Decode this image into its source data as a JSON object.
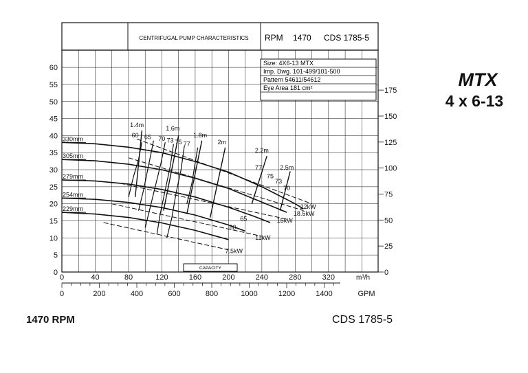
{
  "header": {
    "title": "CENTRIFUGAL PUMP CHARACTERISTICS",
    "rpm_label": "RPM",
    "rpm_value": "1470",
    "cds": "CDS 1785-5"
  },
  "info_box": [
    "Size: 4X6-13 MTX",
    "Imp. Dwg. 101-499/101-500",
    "Pattern 54611/54612",
    "Eye Area   181  cm²"
  ],
  "side_label": {
    "model": "MTX",
    "size": "4 x 6-13"
  },
  "footer": {
    "rpm": "1470 RPM",
    "cds": "CDS 1785-5"
  },
  "capacity_label": "CAPACITY",
  "colors": {
    "line": "#111111",
    "background": "#ffffff"
  },
  "chart_data": {
    "type": "line",
    "title": "CENTRIFUGAL PUMP CHARACTERISTICS",
    "x_unit_primary": "m³/h",
    "x_unit_secondary": "GPM",
    "y_left_unit": "m",
    "y_right_unit": "ft",
    "xlim": [
      0,
      360
    ],
    "ylim": [
      0,
      65
    ],
    "grid": true,
    "x_ticks_m3h": [
      "0",
      "40",
      "80",
      "120",
      "160",
      "200",
      "240",
      "280",
      "320"
    ],
    "x_ticks_m3h_values": [
      0,
      40,
      80,
      120,
      160,
      200,
      240,
      280,
      320
    ],
    "x_ticks_gpm": [
      "0",
      "200",
      "400",
      "600",
      "800",
      "1000",
      "1200",
      "1400"
    ],
    "x_ticks_gpm_values": [
      0,
      200,
      400,
      600,
      800,
      1000,
      1200,
      1400
    ],
    "y_ticks_left": [
      "0",
      "5",
      "10",
      "15",
      "20",
      "25",
      "30",
      "35",
      "40",
      "45",
      "50",
      "55",
      "60"
    ],
    "y_ticks_left_values": [
      0,
      5,
      10,
      15,
      20,
      25,
      30,
      35,
      40,
      45,
      50,
      55,
      60
    ],
    "y_ticks_right": [
      "0",
      "25",
      "50",
      "75",
      "100",
      "125",
      "150",
      "175"
    ],
    "y_ticks_right_values": [
      0,
      25,
      50,
      75,
      100,
      125,
      150,
      175
    ],
    "impeller_curves": [
      {
        "name": "330mm",
        "points": [
          [
            0,
            38
          ],
          [
            40,
            37.6
          ],
          [
            80,
            36.6
          ],
          [
            120,
            35
          ],
          [
            160,
            32.4
          ],
          [
            200,
            29.3
          ],
          [
            240,
            25
          ],
          [
            280,
            20
          ],
          [
            290,
            18.5
          ]
        ]
      },
      {
        "name": "305mm",
        "points": [
          [
            0,
            33
          ],
          [
            40,
            32.6
          ],
          [
            80,
            31.6
          ],
          [
            120,
            30
          ],
          [
            160,
            27.5
          ],
          [
            200,
            24.5
          ],
          [
            240,
            20.5
          ],
          [
            270,
            17.5
          ]
        ]
      },
      {
        "name": "279mm",
        "points": [
          [
            0,
            27
          ],
          [
            40,
            26.7
          ],
          [
            80,
            25.8
          ],
          [
            120,
            24.2
          ],
          [
            160,
            22
          ],
          [
            200,
            19
          ],
          [
            230,
            16.4
          ],
          [
            250,
            14.5
          ]
        ]
      },
      {
        "name": "254mm",
        "points": [
          [
            0,
            21.7
          ],
          [
            40,
            21.3
          ],
          [
            80,
            20.4
          ],
          [
            120,
            18.9
          ],
          [
            160,
            16.7
          ],
          [
            200,
            13.8
          ],
          [
            220,
            12
          ]
        ]
      },
      {
        "name": "229mm",
        "points": [
          [
            0,
            17.5
          ],
          [
            40,
            17
          ],
          [
            80,
            16
          ],
          [
            120,
            14.4
          ],
          [
            160,
            12.2
          ],
          [
            200,
            9.5
          ]
        ]
      }
    ],
    "efficiency_labels": [
      {
        "text": "60",
        "x": 88,
        "y": 39.5
      },
      {
        "text": "65",
        "x": 103,
        "y": 39
      },
      {
        "text": "70",
        "x": 120,
        "y": 38.5
      },
      {
        "text": "73",
        "x": 130,
        "y": 38
      },
      {
        "text": "75",
        "x": 140,
        "y": 37.5
      },
      {
        "text": "77",
        "x": 150,
        "y": 37
      },
      {
        "text": "77",
        "x": 236,
        "y": 30
      },
      {
        "text": "75",
        "x": 250,
        "y": 27.5
      },
      {
        "text": "73",
        "x": 260,
        "y": 26
      },
      {
        "text": "70",
        "x": 270,
        "y": 24
      },
      {
        "text": "65",
        "x": 218,
        "y": 15
      },
      {
        "text": "60",
        "x": 205,
        "y": 12.5
      }
    ],
    "efficiency_contours": [
      {
        "name": "60",
        "points": [
          [
            80,
            22
          ],
          [
            86,
            28
          ],
          [
            92,
            33
          ],
          [
            96,
            38
          ]
        ]
      },
      {
        "name": "65",
        "points": [
          [
            92,
            18
          ],
          [
            98,
            24
          ],
          [
            103,
            30
          ],
          [
            108,
            36
          ],
          [
            110,
            38.5
          ]
        ]
      },
      {
        "name": "70",
        "points": [
          [
            100,
            13
          ],
          [
            106,
            19
          ],
          [
            113,
            26
          ],
          [
            119,
            32
          ],
          [
            124,
            38
          ]
        ]
      },
      {
        "name": "73",
        "points": [
          [
            114,
            11
          ],
          [
            118,
            17
          ],
          [
            124,
            24
          ],
          [
            130,
            31
          ],
          [
            134,
            37.5
          ]
        ]
      },
      {
        "name": "75",
        "points": [
          [
            126,
            10
          ],
          [
            132,
            16
          ],
          [
            137,
            23
          ],
          [
            143,
            30
          ],
          [
            147,
            37
          ]
        ]
      },
      {
        "name": "77",
        "points": [
          [
            150,
            20
          ],
          [
            156,
            26
          ],
          [
            160,
            32
          ],
          [
            163,
            36.5
          ]
        ]
      }
    ],
    "npsh_labels": [
      {
        "text": "1.4m",
        "x": 90,
        "y": 42.5
      },
      {
        "text": "1.6m",
        "x": 133,
        "y": 41.5
      },
      {
        "text": "1.8m",
        "x": 166,
        "y": 39.5
      },
      {
        "text": "2m",
        "x": 192,
        "y": 37.5
      },
      {
        "text": "2.2m",
        "x": 240,
        "y": 35
      },
      {
        "text": "2.5m",
        "x": 270,
        "y": 30
      }
    ],
    "npsh_lines": [
      {
        "name": "1.4m",
        "points": [
          [
            96,
            41.5
          ],
          [
            88,
            22
          ]
        ]
      },
      {
        "name": "1.6m",
        "points": [
          [
            140,
            40
          ],
          [
            122,
            18
          ]
        ]
      },
      {
        "name": "1.8m",
        "points": [
          [
            168,
            38.5
          ],
          [
            150,
            17
          ]
        ]
      },
      {
        "name": "2m",
        "points": [
          [
            196,
            36.5
          ],
          [
            178,
            16
          ]
        ]
      },
      {
        "name": "2.2m",
        "points": [
          [
            246,
            34
          ],
          [
            228,
            20
          ]
        ]
      },
      {
        "name": "2.5m",
        "points": [
          [
            274,
            29.5
          ],
          [
            262,
            18
          ]
        ]
      }
    ],
    "power_labels": [
      {
        "text": "22kW",
        "x": 286,
        "y": 18.5
      },
      {
        "text": "18.5kW",
        "x": 278,
        "y": 16.5
      },
      {
        "text": "15kW",
        "x": 258,
        "y": 14.5
      },
      {
        "text": "11kW",
        "x": 232,
        "y": 9.5
      },
      {
        "text": "7.5kW",
        "x": 196,
        "y": 5.5
      }
    ],
    "power_lines": [
      {
        "name": "22kW",
        "points": [
          [
            90,
            39
          ],
          [
            300,
            20
          ]
        ]
      },
      {
        "name": "18.5kW",
        "points": [
          [
            80,
            33.5
          ],
          [
            290,
            18
          ]
        ]
      },
      {
        "name": "15kW",
        "points": [
          [
            70,
            26
          ],
          [
            270,
            15.5
          ]
        ]
      },
      {
        "name": "11kW",
        "points": [
          [
            60,
            20
          ],
          [
            240,
            10.5
          ]
        ]
      },
      {
        "name": "7.5kW",
        "points": [
          [
            50,
            14.5
          ],
          [
            200,
            6.5
          ]
        ]
      }
    ]
  }
}
